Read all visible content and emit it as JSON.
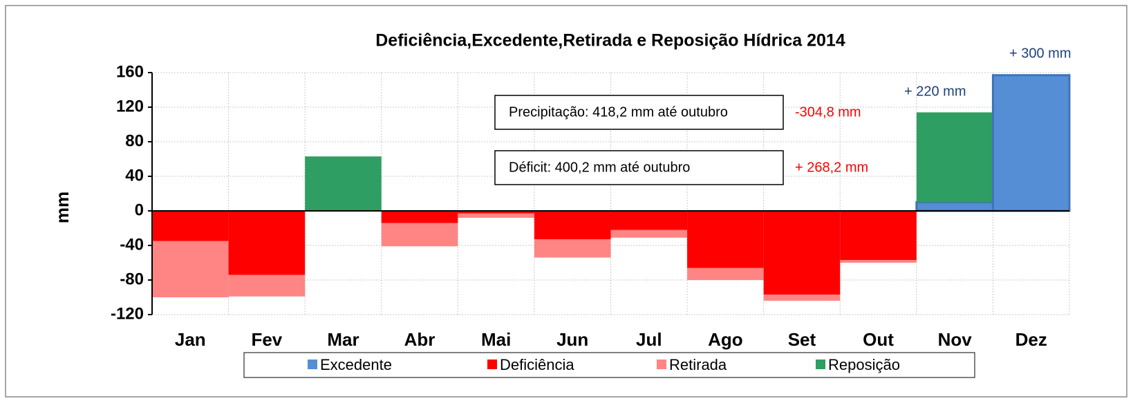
{
  "chart_data": {
    "type": "stacked_bar",
    "title": "Deficiência,Excedente,Retirada e Reposição Hídrica 2014",
    "y_label": "mm",
    "categories": [
      "Jan",
      "Fev",
      "Mar",
      "Abr",
      "Mai",
      "Jun",
      "Jul",
      "Ago",
      "Set",
      "Out",
      "Nov",
      "Dez"
    ],
    "series": [
      {
        "name": "Excedente",
        "color": "#558ed5",
        "edgecolor": "#3f72b8",
        "values": [
          null,
          null,
          null,
          null,
          null,
          null,
          null,
          null,
          null,
          null,
          10,
          157
        ]
      },
      {
        "name": "Deficiência",
        "color": "#ff0000",
        "values": [
          -35,
          -74,
          null,
          -14,
          -3,
          -33,
          -22,
          -66,
          -97,
          -57,
          null,
          null
        ]
      },
      {
        "name": "Retirada",
        "color": "#ff8585",
        "values": [
          -65,
          -25,
          null,
          -27,
          -5,
          -21,
          -9,
          -14,
          -7,
          -3,
          null,
          null
        ]
      },
      {
        "name": "Reposição",
        "color": "#2f9e62",
        "values": [
          null,
          null,
          63,
          null,
          null,
          null,
          null,
          null,
          null,
          null,
          104,
          null
        ]
      }
    ],
    "ylim": [
      -120,
      160
    ],
    "yticks": [
      -120,
      -80,
      -40,
      0,
      40,
      80,
      120,
      160
    ],
    "grid": true,
    "legend": "bottom",
    "boxes": [
      "Precipitação: 418,2 mm até outubro",
      "Déficit: 400,2 mm até outubro"
    ],
    "annotations": [
      {
        "text": "-304,8 mm",
        "color": "#ff0000"
      },
      {
        "text": "+ 268,2 mm",
        "color": "#ff0000"
      },
      {
        "text": "+ 220 mm",
        "color": "#1f3f7a"
      },
      {
        "text": "+ 300 mm",
        "color": "#1f3f7a"
      }
    ]
  }
}
